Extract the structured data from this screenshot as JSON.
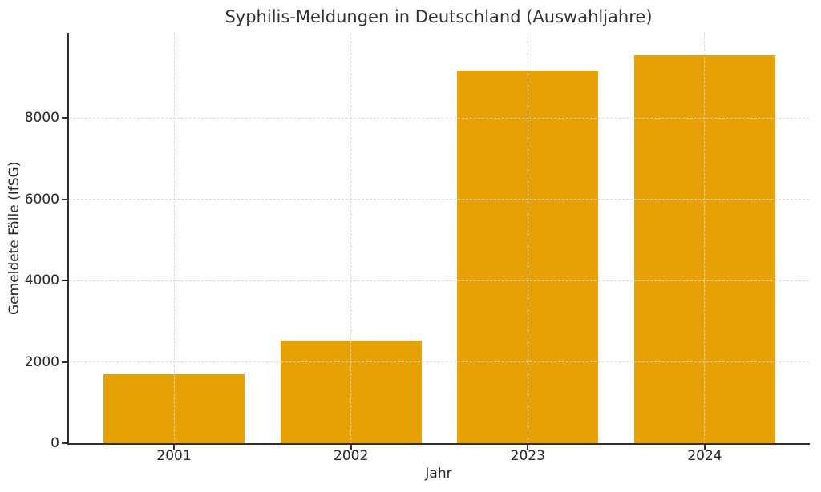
{
  "chart_data": {
    "type": "bar",
    "title": "Syphilis-Meldungen in Deutschland (Auswahljahre)",
    "xlabel": "Jahr",
    "ylabel": "Gemeldete Fälle (IfSG)",
    "categories": [
      "2001",
      "2002",
      "2023",
      "2024"
    ],
    "values": [
      1700,
      2520,
      9180,
      9550
    ],
    "ylim": [
      0,
      10100
    ],
    "yticks": [
      0,
      2000,
      4000,
      6000,
      8000
    ],
    "bar_color": "#E6A105",
    "grid": true,
    "grid_style": "dashed",
    "grid_color": "#d6d6d6",
    "grid_above_bars": true,
    "axis_color": "#2e2e2e",
    "text_color": "#262626",
    "legend_position": "none",
    "background_color": "#ffffff"
  }
}
